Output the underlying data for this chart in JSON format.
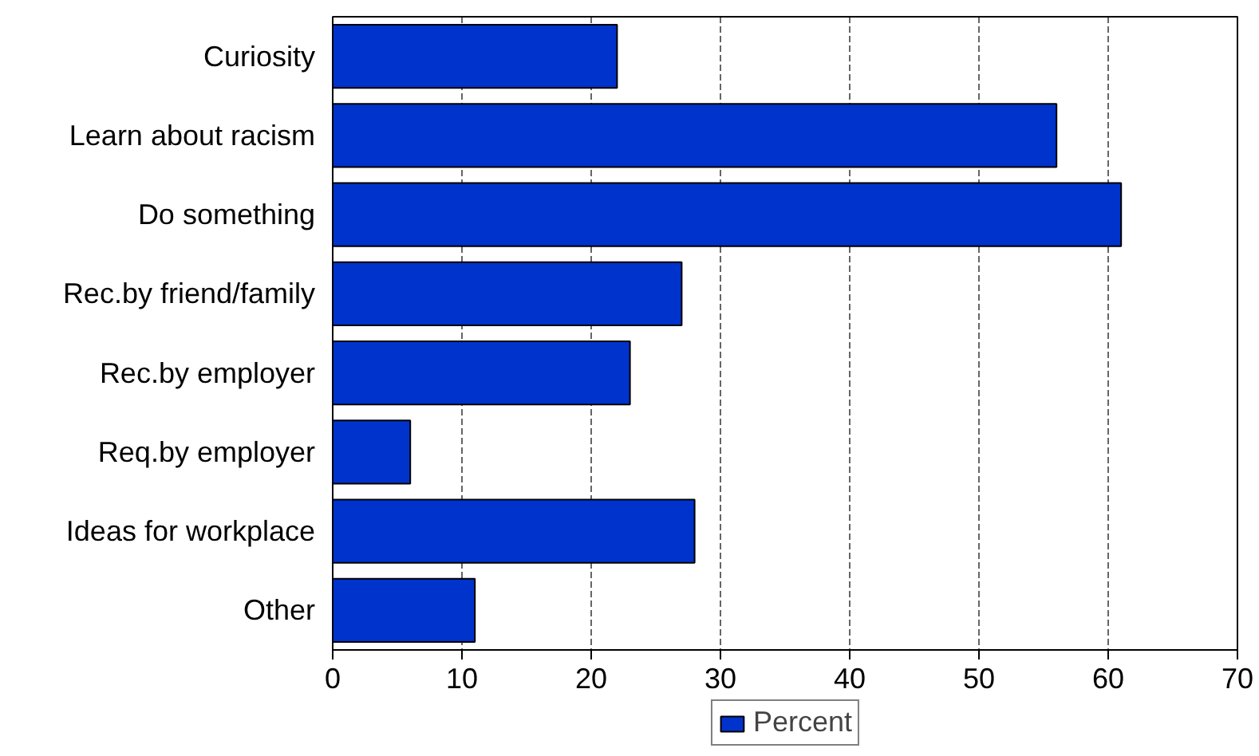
{
  "chart_data": {
    "type": "bar",
    "orientation": "horizontal",
    "categories": [
      "Curiosity",
      "Learn about racism",
      "Do something",
      "Rec.by friend/family",
      "Rec.by employer",
      "Req.by employer",
      "Ideas for workplace",
      "Other"
    ],
    "series": [
      {
        "name": "Percent",
        "color": "#0033cc",
        "values": [
          22,
          56,
          61,
          27,
          23,
          6,
          28,
          11
        ]
      }
    ],
    "xlim": [
      0,
      70
    ],
    "xticks": [
      0,
      10,
      20,
      30,
      40,
      50,
      60,
      70
    ],
    "grid": "x",
    "legend": "bottom"
  }
}
